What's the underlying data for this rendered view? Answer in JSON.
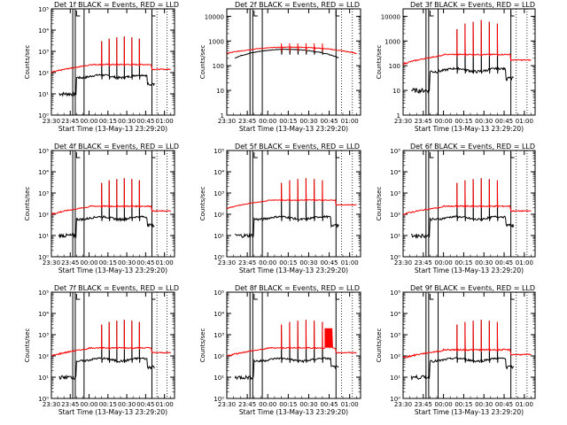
{
  "chart_data": [
    {
      "type": "line",
      "title": "Det 1f  BLACK = Events, RED = LLD",
      "xlabel": "Start Time (13-May-13 23:29:20)",
      "ylabel": "Counts/sec",
      "yscale": "log",
      "ylim": [
        1,
        100000
      ],
      "ytick_labels": [
        "10⁰",
        "10¹",
        "10²",
        "10³",
        "10⁴",
        "10⁵"
      ],
      "xtick_labels": [
        "23:30",
        "23:45",
        "00:00",
        "00:15",
        "00:30",
        "00:45",
        "01:00"
      ],
      "series": [
        {
          "name": "Events",
          "color": "#000000",
          "peaks": [
            3000,
            4000,
            4500,
            5000,
            4500,
            4000
          ]
        },
        {
          "name": "LLD",
          "color": "#ff0000",
          "baseline": 150,
          "peaks": [
            3000,
            4000,
            4500,
            5000,
            4500,
            4000
          ]
        }
      ]
    },
    {
      "type": "line",
      "title": "Det 2f  BLACK = Events, RED = LLD",
      "xlabel": "Start Time (13-May-13 23:29:20)",
      "ylabel": "Counts/sec",
      "yscale": "log",
      "ylim": [
        1,
        20000
      ],
      "ytick_labels": [
        "1",
        "10",
        "100",
        "1000",
        "10000"
      ],
      "xtick_labels": [
        "23:30",
        "23:45",
        "00:00",
        "00:15",
        "00:30",
        "00:45",
        "01:00"
      ],
      "series": [
        {
          "name": "Events",
          "color": "#000000",
          "peaks": [
            500,
            500,
            500,
            500,
            500,
            500
          ]
        },
        {
          "name": "LLD",
          "color": "#ff0000",
          "baseline": 300,
          "peaks": [
            800,
            800,
            800,
            800,
            800,
            800
          ]
        }
      ]
    },
    {
      "type": "line",
      "title": "Det 3f  BLACK = Events, RED = LLD",
      "xlabel": "Start Time (13-May-13 23:29:20)",
      "ylabel": "Counts/sec",
      "yscale": "log",
      "ylim": [
        1,
        20000
      ],
      "ytick_labels": [
        "1",
        "10",
        "100",
        "1000",
        "10000"
      ],
      "xtick_labels": [
        "23:30",
        "23:45",
        "00:00",
        "00:15",
        "00:30",
        "00:45",
        "01:00"
      ],
      "series": [
        {
          "name": "Events",
          "color": "#000000",
          "peaks": [
            3000,
            5000,
            6000,
            7000,
            6000,
            5000
          ]
        },
        {
          "name": "LLD",
          "color": "#ff0000",
          "baseline": 180,
          "peaks": [
            3000,
            5000,
            6000,
            7000,
            6000,
            5000
          ]
        }
      ]
    },
    {
      "type": "line",
      "title": "Det 4f  BLACK = Events, RED = LLD",
      "xlabel": "Start Time (13-May-13 23:29:20)",
      "ylabel": "Counts/sec",
      "yscale": "log",
      "ylim": [
        1,
        100000
      ],
      "ytick_labels": [
        "10⁰",
        "10¹",
        "10²",
        "10³",
        "10⁴",
        "10⁵"
      ],
      "xtick_labels": [
        "23:30",
        "23:45",
        "00:00",
        "00:15",
        "00:30",
        "00:45",
        "01:00"
      ],
      "series": [
        {
          "name": "Events",
          "color": "#000000",
          "peaks": [
            3000,
            4000,
            4500,
            5000,
            4500,
            4000
          ]
        },
        {
          "name": "LLD",
          "color": "#ff0000",
          "baseline": 150,
          "peaks": [
            3000,
            4000,
            4500,
            5000,
            4500,
            4000
          ]
        }
      ]
    },
    {
      "type": "line",
      "title": "Det 5f  BLACK = Events, RED = LLD",
      "xlabel": "Start Time (13-May-13 23:29:20)",
      "ylabel": "Counts/sec",
      "yscale": "log",
      "ylim": [
        1,
        100000
      ],
      "ytick_labels": [
        "10⁰",
        "10¹",
        "10²",
        "10³",
        "10⁴",
        "10⁵"
      ],
      "xtick_labels": [
        "23:30",
        "23:45",
        "00:00",
        "00:15",
        "00:30",
        "00:45",
        "01:00"
      ],
      "series": [
        {
          "name": "Events",
          "color": "#000000",
          "peaks": [
            3000,
            4000,
            4500,
            5000,
            4500,
            4000
          ]
        },
        {
          "name": "LLD",
          "color": "#ff0000",
          "baseline": 300,
          "peaks": [
            3000,
            4000,
            4500,
            5000,
            4500,
            4000
          ]
        }
      ]
    },
    {
      "type": "line",
      "title": "Det 6f  BLACK = Events, RED = LLD",
      "xlabel": "Start Time (13-May-13 23:29:20)",
      "ylabel": "Counts/sec",
      "yscale": "log",
      "ylim": [
        1,
        100000
      ],
      "ytick_labels": [
        "10⁰",
        "10¹",
        "10²",
        "10³",
        "10⁴",
        "10⁵"
      ],
      "xtick_labels": [
        "23:30",
        "23:45",
        "00:00",
        "00:15",
        "00:30",
        "00:45",
        "01:00"
      ],
      "series": [
        {
          "name": "Events",
          "color": "#000000",
          "peaks": [
            3000,
            4000,
            4500,
            5000,
            4500,
            4000
          ]
        },
        {
          "name": "LLD",
          "color": "#ff0000",
          "baseline": 150,
          "peaks": [
            3000,
            4000,
            4500,
            5000,
            4500,
            4000
          ]
        }
      ]
    },
    {
      "type": "line",
      "title": "Det 7f  BLACK = Events, RED = LLD",
      "xlabel": "Start Time (13-May-13 23:29:20)",
      "ylabel": "Counts/sec",
      "yscale": "log",
      "ylim": [
        1,
        100000
      ],
      "ytick_labels": [
        "10⁰",
        "10¹",
        "10²",
        "10³",
        "10⁴",
        "10⁵"
      ],
      "xtick_labels": [
        "23:30",
        "23:45",
        "00:00",
        "00:15",
        "00:30",
        "00:45",
        "01:00"
      ],
      "series": [
        {
          "name": "Events",
          "color": "#000000",
          "peaks": [
            3000,
            4000,
            4500,
            5000,
            4500,
            4000
          ]
        },
        {
          "name": "LLD",
          "color": "#ff0000",
          "baseline": 150,
          "peaks": [
            3000,
            4000,
            4500,
            5000,
            4500,
            4000
          ]
        }
      ]
    },
    {
      "type": "line",
      "title": "Det 8f  BLACK = Events, RED = LLD",
      "xlabel": "Start Time (13-May-13 23:29:20)",
      "ylabel": "Counts/sec",
      "yscale": "log",
      "ylim": [
        1,
        100000
      ],
      "ytick_labels": [
        "10⁰",
        "10¹",
        "10²",
        "10³",
        "10⁴",
        "10⁵"
      ],
      "xtick_labels": [
        "23:30",
        "23:45",
        "00:00",
        "00:15",
        "00:30",
        "00:45",
        "01:00"
      ],
      "series": [
        {
          "name": "Events",
          "color": "#000000",
          "peaks": [
            3000,
            4000,
            4500,
            5000,
            4500,
            4000
          ]
        },
        {
          "name": "LLD",
          "color": "#ff0000",
          "baseline": 150,
          "peaks": [
            3000,
            4000,
            4500,
            5000,
            4500,
            4000
          ],
          "plateau": 2000
        }
      ]
    },
    {
      "type": "line",
      "title": "Det 9f  BLACK = Events, RED = LLD",
      "xlabel": "Start Time (13-May-13 23:29:20)",
      "ylabel": "Counts/sec",
      "yscale": "log",
      "ylim": [
        1,
        100000
      ],
      "ytick_labels": [
        "10⁰",
        "10¹",
        "10²",
        "10³",
        "10⁴",
        "10⁵"
      ],
      "xtick_labels": [
        "23:30",
        "23:45",
        "00:00",
        "00:15",
        "00:30",
        "00:45",
        "01:00"
      ],
      "series": [
        {
          "name": "Events",
          "color": "#000000",
          "peaks": [
            3000,
            4000,
            4500,
            5000,
            4500,
            4000
          ]
        },
        {
          "name": "LLD",
          "color": "#ff0000",
          "baseline": 120,
          "peaks": [
            3000,
            4000,
            4500,
            5000,
            4500,
            4000
          ]
        }
      ]
    }
  ]
}
